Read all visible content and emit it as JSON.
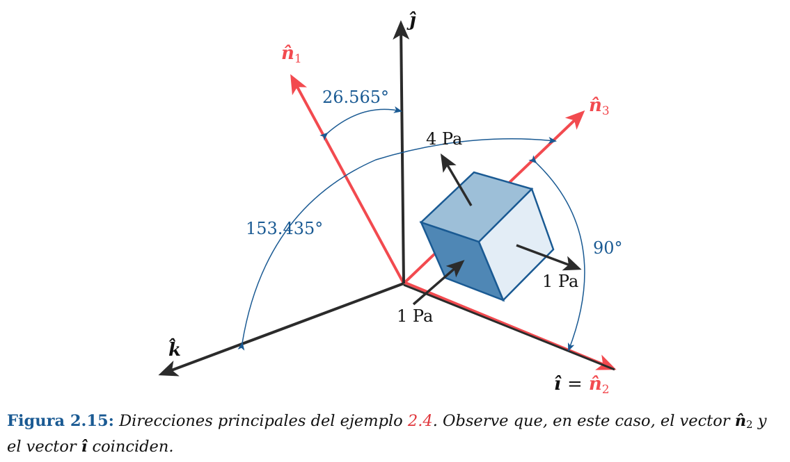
{
  "axes": {
    "j_label": "ĵ",
    "k_label": "k̂",
    "i_label": "î",
    "equals": "=",
    "n1_base": "n̂",
    "n1_sub": "1",
    "n2_base": "n̂",
    "n2_sub": "2",
    "n3_base": "n̂",
    "n3_sub": "3"
  },
  "angles": {
    "a1": "26.565°",
    "a2": "153.435°",
    "a3": "90°"
  },
  "stresses": {
    "top": "4 Pa",
    "right": "1 Pa",
    "front": "1 Pa"
  },
  "caption": {
    "figure_number": "Figura 2.15:",
    "text_before_ref": "Direcciones principales del ejemplo",
    "ref": "2.4",
    "text_after_ref": ". Observe que, en este caso, el vector",
    "vec_n": "n̂",
    "vec_n_sub": "2",
    "text_y": "y",
    "text_line2_start": "el vector",
    "vec_i": "î",
    "text_end": "coinciden."
  },
  "colors": {
    "axis_black": "#2b2b2b",
    "principal_red": "#f24a4f",
    "angle_blue": "#1a5a93",
    "cube_top": "#9dbfd8",
    "cube_left": "#4f87b5",
    "cube_right": "#e3edf6",
    "cube_edge": "#1a5a93"
  }
}
